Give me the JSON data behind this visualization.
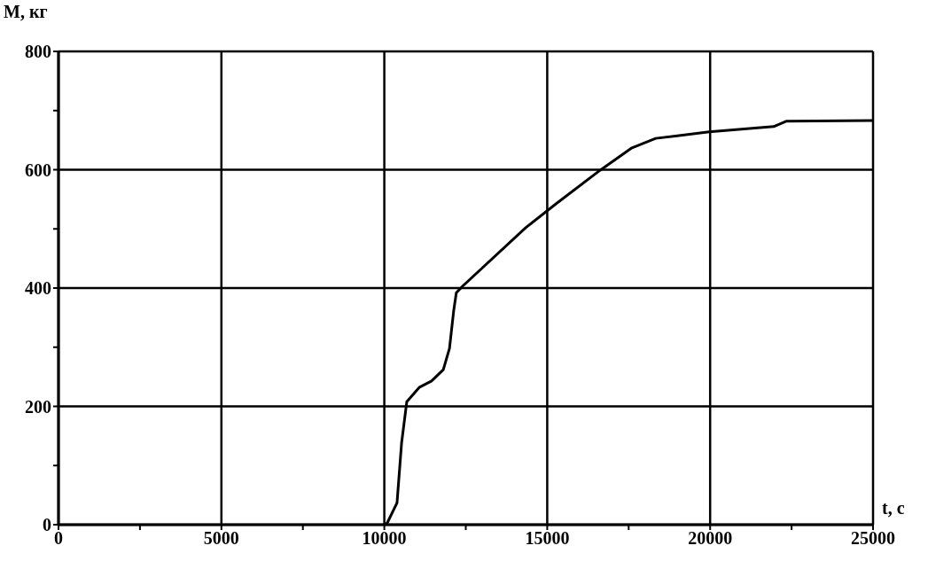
{
  "chart_data": {
    "type": "line",
    "xlabel": "t, с",
    "ylabel": "M, кг",
    "xlim": [
      0,
      25000
    ],
    "ylim": [
      0,
      800
    ],
    "xticks": [
      0,
      {
        "value": 2500,
        "label": null
      },
      5000,
      {
        "value": 7500,
        "label": null
      },
      10000,
      {
        "value": 12500,
        "label": null
      },
      15000,
      {
        "value": 17500,
        "label": null
      },
      20000,
      {
        "value": 22500,
        "label": null
      },
      25000
    ],
    "yticks": [
      0,
      {
        "value": 100,
        "label": null
      },
      200,
      {
        "value": 300,
        "label": null
      },
      400,
      {
        "value": 500,
        "label": null
      },
      600,
      {
        "value": 700,
        "label": null
      },
      800
    ],
    "grid": true,
    "marker": "none",
    "line_style": "solid",
    "series": [
      {
        "color": "#000000",
        "x": [
          10000,
          10090,
          10390,
          10530,
          10690,
          11070,
          11450,
          11810,
          12000,
          12130,
          12210,
          12400,
          14340,
          15260,
          16620,
          17600,
          18330,
          19970,
          21950,
          22330,
          25000
        ],
        "values": [
          0,
          3,
          37,
          138,
          208,
          232,
          243,
          262,
          298,
          362,
          392,
          403,
          502,
          542,
          599,
          637,
          653,
          664,
          673,
          682,
          683
        ]
      }
    ]
  }
}
